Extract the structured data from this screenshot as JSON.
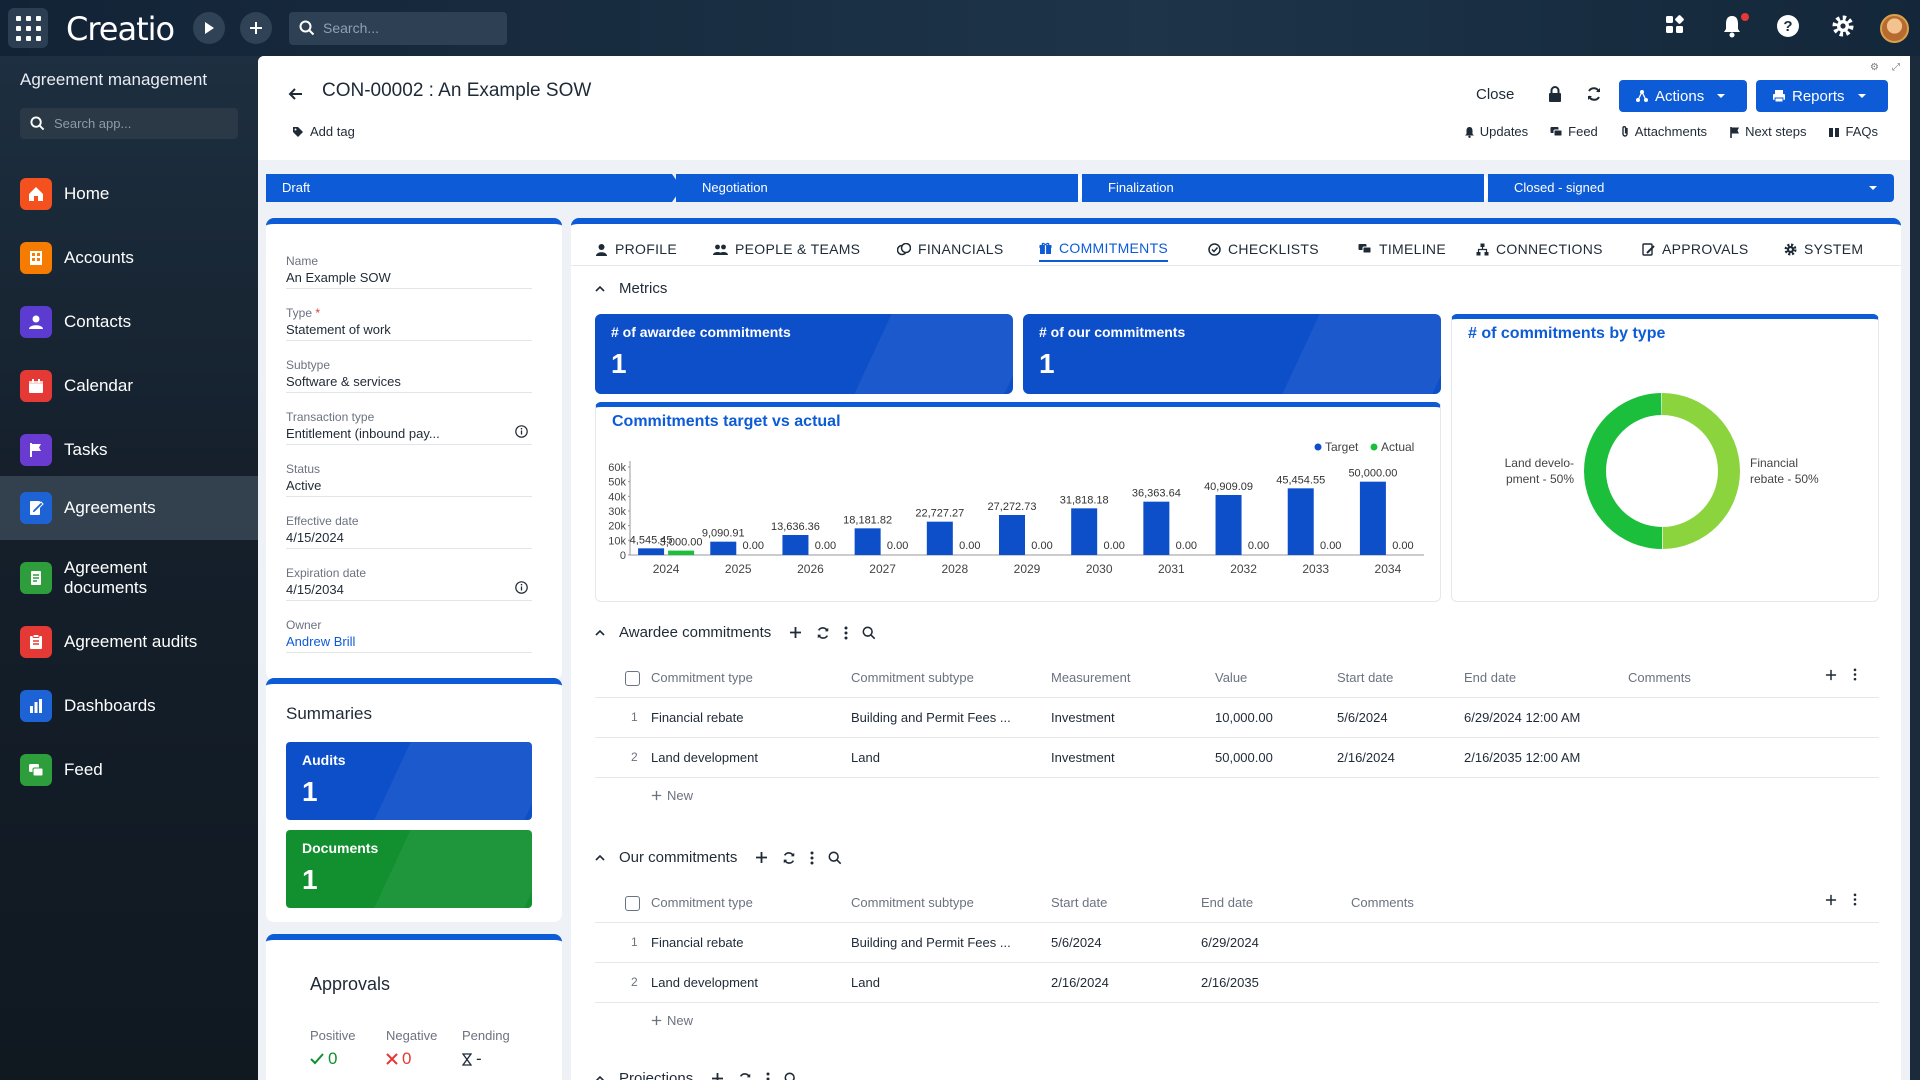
{
  "topbar": {
    "logo": "Creatio",
    "search_placeholder": "Search..."
  },
  "sidebar": {
    "title": "Agreement management",
    "search_placeholder": "Search app...",
    "items": [
      {
        "label": "Home",
        "icon": "home-icon",
        "color": "#f4511e"
      },
      {
        "label": "Accounts",
        "icon": "building-icon",
        "color": "#f57c00"
      },
      {
        "label": "Contacts",
        "icon": "person-icon",
        "color": "#5c3bd1"
      },
      {
        "label": "Calendar",
        "icon": "calendar-icon",
        "color": "#e53935"
      },
      {
        "label": "Tasks",
        "icon": "flag-icon",
        "color": "#6a3bd1"
      },
      {
        "label": "Agreements",
        "icon": "agreement-icon",
        "color": "#1e63d6"
      },
      {
        "label": "Agreement documents",
        "icon": "document-icon",
        "color": "#2e9d3c"
      },
      {
        "label": "Agreement audits",
        "icon": "audit-icon",
        "color": "#e53935"
      },
      {
        "label": "Dashboards",
        "icon": "bar-chart-icon",
        "color": "#1e63d6"
      },
      {
        "label": "Feed",
        "icon": "chat-icon",
        "color": "#2e9d3c"
      }
    ]
  },
  "header": {
    "title": "CON-00002 : An Example SOW",
    "add_tag": "Add tag",
    "close": "Close",
    "actions": "Actions",
    "reports": "Reports",
    "links": {
      "updates": "Updates",
      "feed": "Feed",
      "attachments": "Attachments",
      "next_steps": "Next steps",
      "faqs": "FAQs"
    }
  },
  "stages": [
    "Draft",
    "Negotiation",
    "Finalization",
    "Closed - signed"
  ],
  "fields": [
    {
      "label": "Name",
      "value": "An Example SOW"
    },
    {
      "label": "Type",
      "value": "Statement of work",
      "required": "*"
    },
    {
      "label": "Subtype",
      "value": "Software & services"
    },
    {
      "label": "Transaction type",
      "value": "Entitlement (inbound pay..."
    },
    {
      "label": "Status",
      "value": "Active"
    },
    {
      "label": "Effective date",
      "value": "4/15/2024"
    },
    {
      "label": "Expiration date",
      "value": "4/15/2034"
    },
    {
      "label": "Owner",
      "value": "Andrew Brill"
    }
  ],
  "summaries": {
    "title": "Summaries",
    "audits_label": "Audits",
    "audits_value": "1",
    "documents_label": "Documents",
    "documents_value": "1"
  },
  "approvals": {
    "title": "Approvals",
    "positive_label": "Positive",
    "positive_value": "0",
    "negative_label": "Negative",
    "negative_value": "0",
    "pending_label": "Pending",
    "pending_value": "-"
  },
  "tabs": [
    "PROFILE",
    "PEOPLE & TEAMS",
    "FINANCIALS",
    "COMMITMENTS",
    "CHECKLISTS",
    "TIMELINE",
    "CONNECTIONS",
    "APPROVALS",
    "SYSTEM"
  ],
  "metrics": {
    "section": "Metrics",
    "awardee_label": "# of awardee commitments",
    "awardee_value": "1",
    "our_label": "# of our commitments",
    "our_value": "1"
  },
  "chart_data": [
    {
      "type": "bar",
      "title": "Commitments target vs actual",
      "categories": [
        "2024",
        "2025",
        "2026",
        "2027",
        "2028",
        "2029",
        "2030",
        "2031",
        "2032",
        "2033",
        "2034"
      ],
      "series": [
        {
          "name": "Target",
          "color": "#0d4fc9",
          "values": [
            4545.45,
            9090.91,
            13636.36,
            18181.82,
            22727.27,
            27272.73,
            31818.18,
            36363.64,
            40909.09,
            45454.55,
            50000.0
          ],
          "labels": [
            "4,545.45",
            "9,090.91",
            "13,636.36",
            "18,181.82",
            "22,727.27",
            "27,272.73",
            "31,818.18",
            "36,363.64",
            "40,909.09",
            "45,454.55",
            "50,000.00"
          ]
        },
        {
          "name": "Actual",
          "color": "#1cbf3c",
          "values": [
            3000,
            0,
            0,
            0,
            0,
            0,
            0,
            0,
            0,
            0,
            0
          ],
          "labels": [
            "3,000.00",
            "0.00",
            "0.00",
            "0.00",
            "0.00",
            "0.00",
            "0.00",
            "0.00",
            "0.00",
            "0.00",
            "0.00"
          ]
        }
      ],
      "yticks": [
        "0",
        "10k",
        "20k",
        "30k",
        "40k",
        "50k",
        "60k"
      ],
      "ylim": [
        0,
        60000
      ],
      "legend": "top-right"
    },
    {
      "type": "pie",
      "title": "# of commitments by type",
      "slices": [
        {
          "label": "Land develo-",
          "label2": "pment - 50%",
          "value": 50,
          "color": "#1cbf3c"
        },
        {
          "label": "Financial",
          "label2": "rebate - 50%",
          "value": 50,
          "color": "#8bd43e"
        }
      ]
    }
  ],
  "awardee": {
    "title": "Awardee commitments",
    "columns": [
      "Commitment type",
      "Commitment subtype",
      "Measurement",
      "Value",
      "Start date",
      "End date",
      "Comments"
    ],
    "rows": [
      {
        "n": "1",
        "type": "Financial rebate",
        "subtype": "Building and Permit Fees ...",
        "measurement": "Investment",
        "value": "10,000.00",
        "start": "5/6/2024",
        "end": "6/29/2024 12:00 AM"
      },
      {
        "n": "2",
        "type": "Land development",
        "subtype": "Land",
        "measurement": "Investment",
        "value": "50,000.00",
        "start": "2/16/2024",
        "end": "2/16/2035 12:00 AM"
      }
    ],
    "new_label": "New"
  },
  "ours": {
    "title": "Our commitments",
    "columns": [
      "Commitment type",
      "Commitment subtype",
      "Start date",
      "End date",
      "Comments"
    ],
    "rows": [
      {
        "n": "1",
        "type": "Financial rebate",
        "subtype": "Building and Permit Fees ...",
        "start": "5/6/2024",
        "end": "6/29/2024"
      },
      {
        "n": "2",
        "type": "Land development",
        "subtype": "Land",
        "start": "2/16/2024",
        "end": "2/16/2035"
      }
    ],
    "new_label": "New"
  },
  "projections": {
    "title": "Projections"
  }
}
